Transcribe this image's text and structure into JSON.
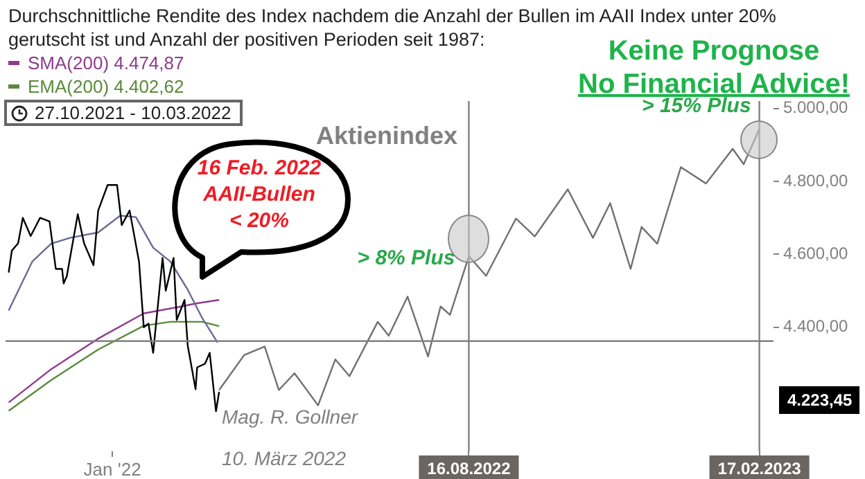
{
  "chart_data": {
    "type": "line",
    "title": "Durchschnittliche Rendite des Index nachdem die Anzahl der Bullen im AAII Index unter 20% gerutscht ist und Anzahl der positiven Perioden seit 1987:",
    "subtitle": "27.10.2021 - 10.03.2022",
    "legend": "top left",
    "xlim": [
      "2021-10-25",
      "2023-02-26"
    ],
    "xticks": [
      {
        "value": "2022-01-01",
        "label": "Jan '22"
      },
      {
        "value": "2022-08-16",
        "label": "16.08.2022"
      },
      {
        "value": "2023-02-17",
        "label": "17.02.2023"
      }
    ],
    "ylim": [
      4060,
      5020
    ],
    "yticks": [
      {
        "value": 4400,
        "label": "4.400,00"
      },
      {
        "value": 4600,
        "label": "4.600,00"
      },
      {
        "value": 4800,
        "label": "4.800,00"
      },
      {
        "value": 5000,
        "label": "5.000,00"
      }
    ],
    "series": [
      {
        "color": "#000000",
        "x": [
          "2021-10-27",
          "2021-10-29",
          "2021-11-02",
          "2021-11-05",
          "2021-11-10",
          "2021-11-16",
          "2021-11-22",
          "2021-11-26",
          "2021-11-30",
          "2021-12-01",
          "2021-12-03",
          "2021-12-10",
          "2021-12-14",
          "2021-12-20",
          "2021-12-23",
          "2021-12-29",
          "2022-01-04",
          "2022-01-07",
          "2022-01-12",
          "2022-01-18",
          "2022-01-21",
          "2022-01-24",
          "2022-01-27",
          "2022-02-02",
          "2022-02-04",
          "2022-02-09",
          "2022-02-11",
          "2022-02-16",
          "2022-02-18",
          "2022-02-23",
          "2022-02-24",
          "2022-03-01",
          "2022-03-04",
          "2022-03-08",
          "2022-03-10"
        ],
        "values": [
          4550,
          4610,
          4630,
          4700,
          4650,
          4700,
          4690,
          4560,
          4560,
          4520,
          4540,
          4710,
          4630,
          4570,
          4720,
          4790,
          4790,
          4680,
          4720,
          4580,
          4400,
          4410,
          4330,
          4590,
          4500,
          4590,
          4420,
          4475,
          4350,
          4230,
          4290,
          4300,
          4330,
          4170,
          4223
        ]
      },
      {
        "color": "#6a6a9a",
        "x": [
          "2021-10-27",
          "2021-11-11",
          "2021-11-23",
          "2021-12-05",
          "2021-12-23",
          "2022-01-06",
          "2022-01-16",
          "2022-01-27",
          "2022-02-07",
          "2022-02-18",
          "2022-02-27",
          "2022-03-09"
        ],
        "values": [
          4446,
          4580,
          4629,
          4645,
          4660,
          4706,
          4702,
          4618,
          4580,
          4503,
          4427,
          4358
        ]
      },
      {
        "name": "SMA(200)  4.474,87",
        "color": "#8e3a8e",
        "x": [
          "2021-10-27",
          "2021-11-23",
          "2021-12-23",
          "2022-01-21",
          "2022-02-14",
          "2022-02-23",
          "2022-03-10"
        ],
        "values": [
          4194,
          4285,
          4369,
          4438,
          4457,
          4465,
          4475
        ]
      },
      {
        "name": "EMA(200)  4.402,62",
        "color": "#5a8a3a",
        "x": [
          "2021-10-27",
          "2021-11-23",
          "2021-12-23",
          "2022-01-21",
          "2022-02-07",
          "2022-02-27",
          "2022-03-10"
        ],
        "values": [
          4171,
          4255,
          4339,
          4404,
          4415,
          4415,
          4403
        ]
      },
      {
        "color": "#707070",
        "x": [
          "2022-03-10",
          "2022-03-26",
          "2022-04-08",
          "2022-04-17",
          "2022-04-27",
          "2022-05-12",
          "2022-05-23",
          "2022-06-01",
          "2022-06-19",
          "2022-06-26",
          "2022-07-08",
          "2022-07-21",
          "2022-07-29",
          "2022-08-04",
          "2022-08-16",
          "2022-08-27",
          "2022-09-15",
          "2022-09-27",
          "2022-10-18",
          "2022-11-03",
          "2022-11-14",
          "2022-11-27",
          "2022-12-04",
          "2022-12-14",
          "2022-12-29",
          "2023-01-14",
          "2023-01-31",
          "2023-02-07",
          "2023-02-17"
        ],
        "values": [
          4228,
          4324,
          4347,
          4228,
          4274,
          4186,
          4312,
          4266,
          4415,
          4377,
          4484,
          4320,
          4457,
          4434,
          4595,
          4541,
          4698,
          4649,
          4778,
          4645,
          4740,
          4560,
          4675,
          4629,
          4839,
          4794,
          4889,
          4847,
          4943
        ]
      }
    ],
    "ref_lines": [
      {
        "axis": "y",
        "value": 4362,
        "label": null,
        "color": "#808080"
      },
      {
        "axis": "x",
        "value": "2022-08-16",
        "label": null,
        "color": "#808080"
      },
      {
        "axis": "x",
        "value": "2023-02-17",
        "label": null,
        "color": "#808080"
      }
    ],
    "annotations": [
      "Aktienindex",
      "Keine Prognose",
      "No Financial Advice!",
      {
        "text": "> 8% Plus",
        "x": "2022-08-16",
        "y": 4595
      },
      {
        "text": "> 15% Plus",
        "x": "2023-02-17",
        "y": 4943
      },
      "16 Feb. 2022\nAAII-Bullen\n< 20%",
      "Mag. R. Gollner",
      "10. März 2022",
      "4.223,45"
    ]
  }
}
